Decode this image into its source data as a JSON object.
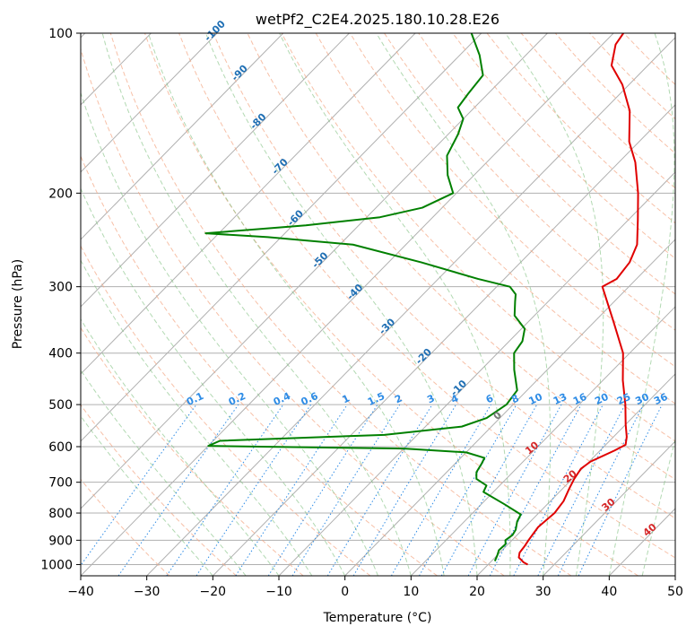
{
  "chart_data": {
    "type": "line",
    "title": "wetPf2_C2E4.2025.180.10.28.E26",
    "xlabel": "Temperature (°C)",
    "ylabel": "Pressure (hPa)",
    "xlim": [
      -40,
      50
    ],
    "ylim": [
      1050,
      100
    ],
    "y_scale": "log",
    "grid": true,
    "x_ticks": [
      -40,
      -30,
      -20,
      -10,
      0,
      10,
      20,
      30,
      40,
      50
    ],
    "y_ticks": [
      1000,
      900,
      800,
      700,
      600,
      500,
      400,
      300,
      200,
      100
    ],
    "isotherm_labels": [
      "-100",
      "-90",
      "-80",
      "-70",
      "-60",
      "-50",
      "-40",
      "-30",
      "-20",
      "-10",
      "0"
    ],
    "isotherm_label_points": [
      {
        "text": "-100",
        "t": -100,
        "p": 100
      },
      {
        "text": "-90",
        "t": -90,
        "p": 120
      },
      {
        "text": "-80",
        "t": -80,
        "p": 148
      },
      {
        "text": "-70",
        "t": -70,
        "p": 180
      },
      {
        "text": "-60",
        "t": -60,
        "p": 225
      },
      {
        "text": "-50",
        "t": -50,
        "p": 270
      },
      {
        "text": "-40",
        "t": -40,
        "p": 310
      },
      {
        "text": "-30",
        "t": -30,
        "p": 360
      },
      {
        "text": "-20",
        "t": -20,
        "p": 410
      },
      {
        "text": "-10",
        "t": -10,
        "p": 470
      },
      {
        "text": "0",
        "t": 0,
        "p": 530
      }
    ],
    "dry_adiabat_labels": [
      {
        "text": "10",
        "t": 10,
        "p": 610
      },
      {
        "text": "20",
        "t": 20,
        "p": 690
      },
      {
        "text": "30",
        "t": 30,
        "p": 780
      },
      {
        "text": "40",
        "t": 40,
        "p": 870
      }
    ],
    "mixing_ratio_labels": [
      "0.1",
      "0.2",
      "0.4",
      "0.6",
      "1",
      "1.5",
      "2",
      "3",
      "4",
      "6",
      "8",
      "10",
      "13",
      "16",
      "20",
      "25",
      "30",
      "36"
    ],
    "series": [
      {
        "color": "#e00000",
        "points": [
          [
            26.0,
            1000
          ],
          [
            25.0,
            990
          ],
          [
            23.6,
            970
          ],
          [
            23.0,
            950
          ],
          [
            22.8,
            925
          ],
          [
            22.5,
            900
          ],
          [
            22.2,
            870
          ],
          [
            22.0,
            850
          ],
          [
            22.4,
            800
          ],
          [
            22.0,
            760
          ],
          [
            21.0,
            720
          ],
          [
            20.3,
            690
          ],
          [
            19.8,
            660
          ],
          [
            20.2,
            640
          ],
          [
            22.2,
            610
          ],
          [
            23.0,
            595
          ],
          [
            22.0,
            575
          ],
          [
            20.0,
            545
          ],
          [
            17.0,
            500
          ],
          [
            13.0,
            450
          ],
          [
            9.0,
            400
          ],
          [
            3.0,
            350
          ],
          [
            -4.0,
            300
          ],
          [
            -3.0,
            290
          ],
          [
            -3.5,
            270
          ],
          [
            -5.0,
            250
          ],
          [
            -8.5,
            225
          ],
          [
            -12.5,
            200
          ],
          [
            -17.5,
            175
          ],
          [
            -21.5,
            160
          ],
          [
            -26.0,
            140
          ],
          [
            -31.0,
            125
          ],
          [
            -35.5,
            115
          ],
          [
            -38.0,
            105
          ],
          [
            -38.5,
            100
          ]
        ]
      },
      {
        "color": "#008000",
        "points": [
          [
            20.5,
            985
          ],
          [
            20.0,
            960
          ],
          [
            19.5,
            940
          ],
          [
            19.6,
            915
          ],
          [
            19.0,
            900
          ],
          [
            19.3,
            880
          ],
          [
            19.0,
            860
          ],
          [
            18.0,
            830
          ],
          [
            17.5,
            805
          ],
          [
            13.5,
            770
          ],
          [
            8.5,
            730
          ],
          [
            8.0,
            710
          ],
          [
            5.5,
            690
          ],
          [
            4.5,
            670
          ],
          [
            4.0,
            645
          ],
          [
            3.6,
            630
          ],
          [
            0.0,
            615
          ],
          [
            -10.0,
            605
          ],
          [
            -40.0,
            598
          ],
          [
            -39.0,
            585
          ],
          [
            -15.0,
            570
          ],
          [
            -4.5,
            550
          ],
          [
            -2.0,
            530
          ],
          [
            -1.0,
            500
          ],
          [
            -1.5,
            470
          ],
          [
            -5.0,
            430
          ],
          [
            -7.5,
            400
          ],
          [
            -8.0,
            380
          ],
          [
            -9.5,
            360
          ],
          [
            -13.0,
            340
          ],
          [
            -15.0,
            320
          ],
          [
            -16.0,
            310
          ],
          [
            -18.0,
            300
          ],
          [
            -24.0,
            290
          ],
          [
            -35.0,
            270
          ],
          [
            -48.0,
            250
          ],
          [
            -62.0,
            242
          ],
          [
            -72.0,
            238
          ],
          [
            -58.0,
            230
          ],
          [
            -48.0,
            222
          ],
          [
            -43.0,
            213
          ],
          [
            -40.5,
            200
          ],
          [
            -44.0,
            185
          ],
          [
            -47.0,
            170
          ],
          [
            -48.5,
            155
          ],
          [
            -50.0,
            145
          ],
          [
            -52.5,
            138
          ],
          [
            -53.0,
            130
          ],
          [
            -53.5,
            120
          ],
          [
            -57.0,
            110
          ],
          [
            -61.5,
            100
          ]
        ]
      }
    ]
  }
}
